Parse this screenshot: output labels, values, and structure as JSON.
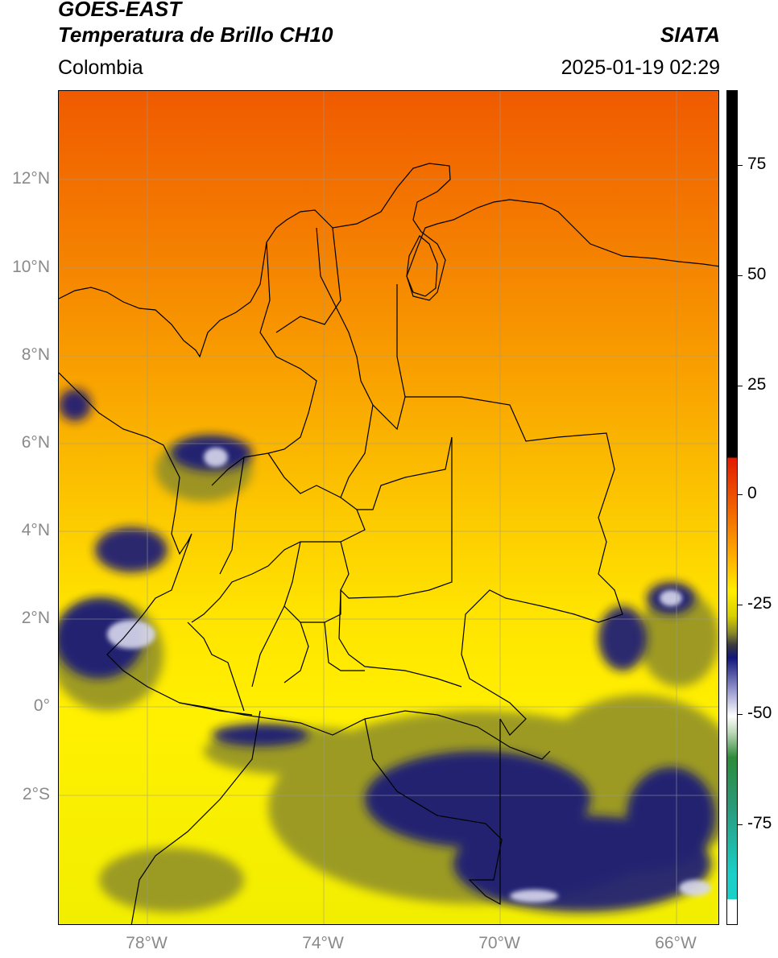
{
  "header": {
    "title_line1": "GOES-EAST",
    "title_line2": "Temperatura de Brillo CH10",
    "region": "Colombia",
    "source": "SIATA",
    "datetime": "2025-01-19 02:29"
  },
  "map": {
    "lat_labels": [
      "12°N",
      "10°N",
      "8°N",
      "6°N",
      "4°N",
      "2°N",
      "0°",
      "2°S"
    ],
    "lon_labels": [
      "78°W",
      "74°W",
      "70°W",
      "66°W"
    ]
  },
  "colorbar": {
    "labels": [
      "75",
      "50",
      "25",
      "0",
      "-25",
      "-50",
      "-75"
    ],
    "colors": {
      "black": "#000000",
      "red": "#e21a00",
      "orange": "#f57a00",
      "yellow": "#ffee00",
      "olive": "#8c8c2a",
      "navy": "#12167a",
      "white": "#ffffff",
      "green": "#2e8b3a",
      "cyan": "#1ad0c8"
    }
  }
}
